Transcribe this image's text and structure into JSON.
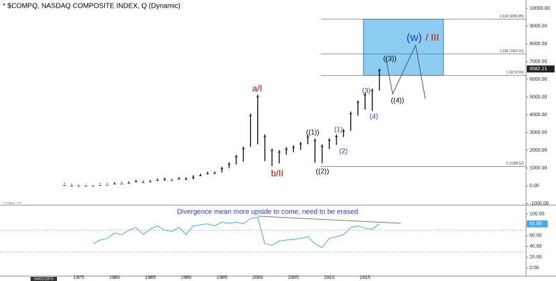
{
  "chart_data": [
    {
      "type": "hilo",
      "title": "* $COMPQ, NASDAQ COMPOSITE INDEX, Q (Dynamic)",
      "x": [
        1973,
        1974,
        1975,
        1976,
        1977,
        1978,
        1979,
        1980,
        1981,
        1982,
        1983,
        1984,
        1985,
        1986,
        1987,
        1988,
        1989,
        1990,
        1991,
        1992,
        1993,
        1994,
        1995,
        1996,
        1997,
        1998,
        1999,
        2000,
        2001,
        2002,
        2003,
        2004,
        2005,
        2006,
        2007,
        2008,
        2009,
        2010,
        2011,
        2012,
        2013,
        2014,
        2015,
        2016,
        2017
      ],
      "high": [
        136,
        100,
        90,
        98,
        105,
        139,
        152,
        208,
        223,
        241,
        329,
        288,
        325,
        411,
        456,
        397,
        486,
        470,
        586,
        677,
        787,
        804,
        1069,
        1328,
        1745,
        2200,
        4069,
        5132,
        2892,
        2098,
        2009,
        2178,
        2278,
        2470,
        2861,
        2661,
        2326,
        2675,
        2887,
        3197,
        4177,
        4814,
        5232,
        5487,
        6600
      ],
      "low": [
        92,
        55,
        60,
        78,
        94,
        99,
        118,
        125,
        175,
        159,
        230,
        225,
        245,
        323,
        291,
        330,
        376,
        325,
        353,
        545,
        645,
        691,
        743,
        988,
        1194,
        1357,
        2193,
        2332,
        1387,
        1108,
        1253,
        1750,
        1889,
        2012,
        2340,
        1295,
        1265,
        2061,
        2298,
        2747,
        3091,
        3946,
        4292,
        4209,
        5368
      ],
      "last_close": 6582.21,
      "color": "#000000",
      "xlim": [
        1964,
        2037.5
      ],
      "xticks": [
        1975,
        1980,
        1985,
        1990,
        1995,
        2000,
        2005,
        2010,
        2015
      ],
      "ylim": [
        -1020,
        10275
      ],
      "yticks": [
        {
          "value": -1000,
          "label": "-1000.00"
        },
        {
          "value": 0,
          "label": "0.00"
        },
        {
          "value": 1000,
          "label": "1000.00"
        },
        {
          "value": 2000,
          "label": "2000.00"
        },
        {
          "value": 3000,
          "label": "3000.00"
        },
        {
          "value": 4000,
          "label": "4000.00"
        },
        {
          "value": 5000,
          "label": "5000.00"
        },
        {
          "value": 6000,
          "label": "6000.00"
        },
        {
          "value": 7000,
          "label": "7000.00"
        },
        {
          "value": 8000,
          "label": "8000.00"
        },
        {
          "value": 9000,
          "label": "9000.00"
        },
        {
          "value": 10000,
          "label": "10000.00"
        }
      ],
      "fib_levels": [
        {
          "value": 1086.52,
          "label": "0 (1086.52)"
        },
        {
          "value": 6219.6,
          "label": "1 (6219.60)"
        },
        {
          "value": 7431.01,
          "label": "1.236 (7431.01)"
        },
        {
          "value": 9391.85,
          "label": "1.618 (9391.85)"
        }
      ],
      "box_color": "#8ecdf2",
      "annotations": [
        {
          "text": "a/I",
          "color": "#e00000"
        },
        {
          "text": "b/II",
          "color": "#e00000"
        },
        {
          "text": "((1))",
          "color": "#000000"
        },
        {
          "text": "((2))",
          "color": "#000000"
        },
        {
          "text": "(1)",
          "color": "#1f3fbf"
        },
        {
          "text": "(2)",
          "color": "#1f3fbf"
        },
        {
          "text": "(3)",
          "color": "#1f3fbf"
        },
        {
          "text": "(4)",
          "color": "#1f3fbf"
        },
        {
          "text": "((3))",
          "color": "#000000"
        },
        {
          "text": "((4))",
          "color": "#000000"
        },
        {
          "text": "(w)",
          "color": "#1f3fbf"
        },
        {
          "text": "/ III",
          "color": "#e00000"
        }
      ],
      "credit": "© eSignal, 2017",
      "cursor_label": "04/01/1970"
    },
    {
      "type": "line",
      "annotation": "Divergence mean more upside to come, need to be erased",
      "x": [
        1977,
        1978,
        1979,
        1980,
        1981,
        1982,
        1983,
        1984,
        1985,
        1986,
        1987,
        1988,
        1989,
        1990,
        1991,
        1992,
        1993,
        1994,
        1995,
        1996,
        1997,
        1998,
        1999,
        2000,
        2001,
        2002,
        2003,
        2004,
        2005,
        2006,
        2007,
        2008,
        2009,
        2010,
        2011,
        2012,
        2013,
        2014,
        2015,
        2016,
        2017
      ],
      "values": [
        45,
        52,
        55,
        65,
        62,
        70,
        75,
        62,
        72,
        78,
        70,
        68,
        75,
        62,
        78,
        80,
        82,
        78,
        85,
        83,
        85,
        82,
        92,
        94,
        45,
        42,
        50,
        52,
        53,
        55,
        58,
        45,
        38,
        55,
        58,
        62,
        75,
        78,
        74,
        72,
        81.88
      ],
      "color": "#3fa9f5",
      "ylim": [
        -15,
        110
      ],
      "yticks": [
        {
          "value": 100,
          "label": "100.00"
        },
        {
          "value": 80,
          "label": "80.00"
        },
        {
          "value": 60,
          "label": "60.00"
        },
        {
          "value": 40,
          "label": "40.00"
        },
        {
          "value": 20,
          "label": "20.00"
        },
        {
          "value": 0,
          "label": "0.00"
        }
      ],
      "levels": [
        70,
        30
      ],
      "trend": {
        "x": [
          2000,
          2020
        ],
        "values": [
          96,
          83
        ]
      }
    }
  ]
}
